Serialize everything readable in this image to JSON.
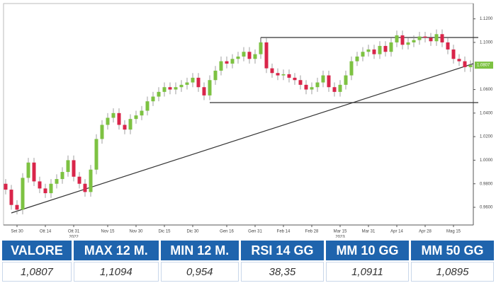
{
  "chart_data": {
    "type": "candlestick",
    "categories": [
      null,
      null,
      "Set 30",
      null,
      null,
      null,
      null,
      "Ott 14",
      null,
      null,
      null,
      null,
      "Ott 31",
      null,
      null,
      null,
      null,
      null,
      "Nov 15",
      null,
      null,
      null,
      null,
      "Nov 30",
      null,
      null,
      null,
      null,
      "Dic 15",
      null,
      null,
      null,
      null,
      "Dic 30",
      null,
      null,
      null,
      null,
      null,
      "Gen 16",
      null,
      null,
      null,
      null,
      "Gen 31",
      null,
      null,
      null,
      null,
      "Feb 14",
      null,
      null,
      null,
      null,
      "Feb 28",
      null,
      null,
      null,
      null,
      "Mar 15",
      null,
      null,
      null,
      null,
      "Mar 31",
      null,
      null,
      null,
      null,
      "Apr 14",
      null,
      null,
      null,
      null,
      "Apr 28",
      null,
      null,
      null,
      null,
      "Mag 15",
      null,
      null,
      null
    ],
    "years": [
      null,
      null,
      null,
      null,
      null,
      null,
      null,
      null,
      null,
      null,
      null,
      null,
      "2022",
      null,
      null,
      null,
      null,
      null,
      null,
      null,
      null,
      null,
      null,
      null,
      null,
      null,
      null,
      null,
      null,
      null,
      null,
      null,
      null,
      null,
      null,
      null,
      null,
      null,
      null,
      null,
      null,
      null,
      null,
      null,
      null,
      null,
      null,
      null,
      null,
      null,
      null,
      null,
      null,
      null,
      null,
      null,
      null,
      null,
      null,
      "2023",
      null,
      null,
      null,
      null,
      null,
      null,
      null,
      null,
      null,
      null,
      null,
      null,
      null,
      null,
      null,
      null,
      null,
      null,
      null,
      null,
      null,
      null,
      null
    ],
    "open": [
      0.98,
      0.975,
      0.962,
      0.958,
      0.985,
      0.998,
      0.982,
      0.976,
      0.972,
      0.98,
      0.984,
      0.99,
      1.0,
      0.986,
      0.98,
      0.973,
      0.992,
      1.018,
      1.03,
      1.036,
      1.04,
      1.03,
      1.026,
      1.035,
      1.038,
      1.042,
      1.05,
      1.054,
      1.058,
      1.062,
      1.06,
      1.062,
      1.064,
      1.066,
      1.07,
      1.062,
      1.055,
      1.068,
      1.076,
      1.084,
      1.082,
      1.086,
      1.088,
      1.092,
      1.086,
      1.09,
      1.1,
      1.078,
      1.074,
      1.072,
      1.073,
      1.07,
      1.068,
      1.064,
      1.06,
      1.062,
      1.066,
      1.072,
      1.062,
      1.058,
      1.064,
      1.072,
      1.084,
      1.088,
      1.092,
      1.094,
      1.09,
      1.097,
      1.092,
      1.1,
      1.106,
      1.098,
      1.1,
      1.102,
      1.105,
      1.104,
      1.101,
      1.107,
      1.1,
      1.094,
      1.086,
      1.084,
      1.079
    ],
    "high": [
      0.984,
      0.979,
      0.966,
      0.989,
      1.002,
      1.002,
      0.986,
      0.98,
      0.984,
      0.988,
      0.994,
      1.004,
      1.004,
      0.99,
      0.984,
      0.996,
      1.022,
      1.034,
      1.04,
      1.044,
      1.044,
      1.034,
      1.039,
      1.042,
      1.046,
      1.054,
      1.058,
      1.062,
      1.066,
      1.066,
      1.066,
      1.068,
      1.07,
      1.074,
      1.074,
      1.066,
      1.072,
      1.08,
      1.088,
      1.088,
      1.09,
      1.092,
      1.096,
      1.096,
      1.094,
      1.104,
      1.104,
      1.082,
      1.078,
      1.077,
      1.077,
      1.074,
      1.072,
      1.068,
      1.066,
      1.07,
      1.076,
      1.076,
      1.066,
      1.068,
      1.076,
      1.088,
      1.092,
      1.096,
      1.098,
      1.098,
      1.101,
      1.101,
      1.104,
      1.11,
      1.11,
      1.104,
      1.106,
      1.109,
      1.109,
      1.108,
      1.111,
      1.111,
      1.104,
      1.098,
      1.09,
      1.088,
      1.0847
    ],
    "low": [
      0.971,
      0.958,
      0.954,
      0.954,
      0.981,
      0.978,
      0.972,
      0.968,
      0.968,
      0.976,
      0.98,
      0.986,
      0.982,
      0.976,
      0.969,
      0.969,
      0.988,
      1.014,
      1.026,
      1.032,
      1.026,
      1.022,
      1.022,
      1.031,
      1.034,
      1.038,
      1.046,
      1.05,
      1.054,
      1.056,
      1.056,
      1.058,
      1.06,
      1.062,
      1.058,
      1.051,
      1.051,
      1.064,
      1.072,
      1.078,
      1.078,
      1.082,
      1.084,
      1.082,
      1.082,
      1.086,
      1.074,
      1.07,
      1.068,
      1.068,
      1.066,
      1.064,
      1.06,
      1.056,
      1.056,
      1.058,
      1.062,
      1.058,
      1.054,
      1.054,
      1.06,
      1.068,
      1.08,
      1.084,
      1.088,
      1.086,
      1.086,
      1.088,
      1.088,
      1.096,
      1.094,
      1.094,
      1.096,
      1.098,
      1.1,
      1.097,
      1.097,
      1.096,
      1.09,
      1.082,
      1.08,
      1.075,
      1.075
    ],
    "close": [
      0.975,
      0.962,
      0.958,
      0.985,
      0.998,
      0.982,
      0.976,
      0.972,
      0.98,
      0.984,
      0.99,
      1.0,
      0.986,
      0.98,
      0.973,
      0.992,
      1.018,
      1.03,
      1.036,
      1.04,
      1.03,
      1.026,
      1.035,
      1.038,
      1.042,
      1.05,
      1.054,
      1.058,
      1.062,
      1.06,
      1.062,
      1.064,
      1.066,
      1.07,
      1.062,
      1.055,
      1.068,
      1.076,
      1.084,
      1.082,
      1.086,
      1.088,
      1.092,
      1.086,
      1.09,
      1.1,
      1.078,
      1.074,
      1.072,
      1.073,
      1.07,
      1.068,
      1.064,
      1.06,
      1.062,
      1.066,
      1.072,
      1.062,
      1.058,
      1.064,
      1.072,
      1.084,
      1.088,
      1.092,
      1.094,
      1.09,
      1.097,
      1.092,
      1.1,
      1.106,
      1.098,
      1.1,
      1.102,
      1.105,
      1.104,
      1.101,
      1.107,
      1.1,
      1.094,
      1.086,
      1.084,
      1.079,
      1.0807
    ],
    "up_color": "#7dc242",
    "down_color": "#d9254a",
    "ylim": [
      0.945,
      1.133
    ],
    "yticks": [
      {
        "value": 0.96,
        "label": "0.9600"
      },
      {
        "value": 0.98,
        "label": "0.9800"
      },
      {
        "value": 1.0,
        "label": "1.0000"
      },
      {
        "value": 1.02,
        "label": "1.0200"
      },
      {
        "value": 1.04,
        "label": "1.0400"
      },
      {
        "value": 1.06,
        "label": "1.0600"
      },
      {
        "value": 1.1,
        "label": "1.1000"
      },
      {
        "value": 1.12,
        "label": "1.1200"
      }
    ],
    "last_price": {
      "value": 1.0807,
      "label": "1.0807"
    }
  },
  "table": {
    "header": [
      "VALORE",
      "MAX 12 M.",
      "MIN 12 M.",
      "RSI 14 GG",
      "MM 10 GG",
      "MM 50 GG"
    ],
    "row": [
      "1,0807",
      "1,1094",
      "0,954",
      "38,35",
      "1,0911",
      "1,0895"
    ]
  }
}
